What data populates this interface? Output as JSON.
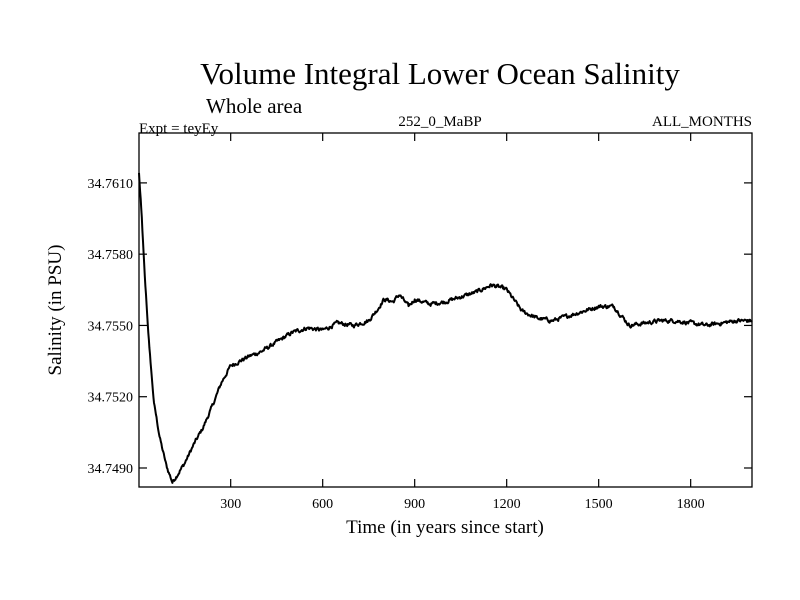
{
  "chart_data": {
    "type": "line",
    "title": "Volume Integral Lower Ocean Salinity",
    "subtitle": "Whole area",
    "experiment_label": "Expt = teyEy",
    "period_label": "252_0_MaBP",
    "months_label": "ALL_MONTHS",
    "xlabel": "Time (in years since start)",
    "ylabel": "Salinity (in PSU)",
    "xlim": [
      1,
      2000
    ],
    "ylim": [
      34.7482,
      34.7631
    ],
    "xticks": [
      300,
      600,
      900,
      1200,
      1500,
      1800
    ],
    "xtick_labels": [
      "300",
      "600",
      "900",
      "1200",
      "1500",
      "1800"
    ],
    "yticks": [
      34.749,
      34.752,
      34.755,
      34.758,
      34.761
    ],
    "ytick_labels": [
      "34.7490",
      "34.7520",
      "34.7550",
      "34.7580",
      "34.7610"
    ],
    "series": [
      {
        "name": "Volume integral lower ocean salinity",
        "color": "#000000",
        "x": [
          1,
          10,
          20,
          35,
          50,
          70,
          90,
          110,
          130,
          150,
          180,
          210,
          240,
          270,
          300,
          330,
          360,
          400,
          450,
          500,
          550,
          600,
          650,
          700,
          750,
          780,
          800,
          830,
          850,
          880,
          900,
          950,
          1000,
          1050,
          1100,
          1150,
          1180,
          1200,
          1250,
          1300,
          1350,
          1400,
          1450,
          1500,
          1550,
          1600,
          1650,
          1700,
          1750,
          1800,
          1850,
          1900,
          1950,
          2000
        ],
        "values": [
          34.7614,
          34.7595,
          34.757,
          34.754,
          34.7517,
          34.7502,
          34.7491,
          34.7484,
          34.7488,
          34.7492,
          34.75,
          34.7507,
          34.7516,
          34.7526,
          34.7533,
          34.7535,
          34.7537,
          34.7539,
          34.7543,
          34.7547,
          34.7549,
          34.7548,
          34.7551,
          34.755,
          34.7552,
          34.7557,
          34.7561,
          34.756,
          34.7563,
          34.7558,
          34.7561,
          34.7559,
          34.756,
          34.7562,
          34.7564,
          34.7567,
          34.7566,
          34.7565,
          34.7556,
          34.7553,
          34.7552,
          34.7554,
          34.7556,
          34.7558,
          34.7558,
          34.755,
          34.7551,
          34.7552,
          34.7552,
          34.7551,
          34.755,
          34.7551,
          34.7552,
          34.7552
        ]
      }
    ]
  }
}
